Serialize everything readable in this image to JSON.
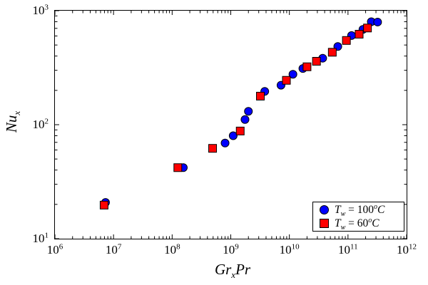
{
  "chart_data": {
    "type": "scatter",
    "title": "",
    "xlabel": "Gr_x Pr",
    "ylabel": "Nu_x",
    "x_scale": "log",
    "y_scale": "log",
    "xlim": [
      1000000.0,
      1000000000000.0
    ],
    "ylim": [
      10,
      1000
    ],
    "grid": false,
    "legend_position": "lower right",
    "tick_base": "10",
    "x_tick_exponents": [
      "6",
      "7",
      "8",
      "9",
      "10",
      "11",
      "12"
    ],
    "y_tick_exponents": [
      "1",
      "2",
      "3"
    ],
    "series": [
      {
        "name": "Tw = 100 C",
        "marker": "circle",
        "color": "#0000ff",
        "edge_color": "#000000",
        "points": [
          [
            7300000.0,
            20.8
          ],
          [
            155000000.0,
            42
          ],
          [
            800000000.0,
            69
          ],
          [
            1100000000.0,
            80
          ],
          [
            1750000000.0,
            111
          ],
          [
            2000000000.0,
            131
          ],
          [
            3800000000.0,
            196
          ],
          [
            7200000000.0,
            222
          ],
          [
            11500000000.0,
            277
          ],
          [
            17000000000.0,
            311
          ],
          [
            37000000000.0,
            383
          ],
          [
            67000000000.0,
            485
          ],
          [
            115000000000.0,
            605
          ],
          [
            180000000000.0,
            685
          ],
          [
            250000000000.0,
            800
          ],
          [
            320000000000.0,
            795
          ]
        ]
      },
      {
        "name": "Tw = 60 C",
        "marker": "square",
        "color": "#ff0000",
        "edge_color": "#000000",
        "points": [
          [
            6900000.0,
            19.7
          ],
          [
            125000000.0,
            42
          ],
          [
            490000000.0,
            62
          ],
          [
            1450000000.0,
            88
          ],
          [
            3200000000.0,
            178
          ],
          [
            8900000000.0,
            245
          ],
          [
            20000000000.0,
            322
          ],
          [
            29000000000.0,
            360
          ],
          [
            54000000000.0,
            432
          ],
          [
            94000000000.0,
            548
          ],
          [
            155000000000.0,
            622
          ],
          [
            215000000000.0,
            705
          ]
        ]
      }
    ]
  },
  "labels": {
    "ylabel": {
      "main": "Nu",
      "sub": "x"
    },
    "xlabel": {
      "part1": "Gr",
      "sub1": "x",
      "part2": "Pr"
    },
    "legend": [
      {
        "sym": "T",
        "sub": "w",
        "rel": " = ",
        "value": "100",
        "deg": "o",
        "unit": "C"
      },
      {
        "sym": "T",
        "sub": "w",
        "rel": " = ",
        "value": "60",
        "deg": "o",
        "unit": "C"
      }
    ]
  }
}
